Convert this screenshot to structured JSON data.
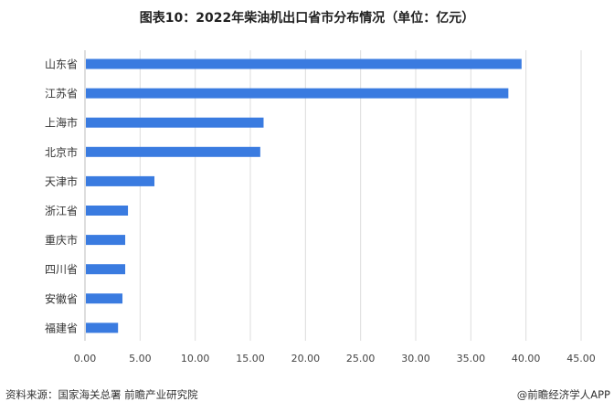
{
  "chart_data": {
    "type": "bar",
    "orientation": "horizontal",
    "title": "图表10：2022年柴油机出口省市分布情况（单位：亿元）",
    "categories": [
      "山东省",
      "江苏省",
      "上海市",
      "北京市",
      "天津市",
      "浙江省",
      "重庆市",
      "四川省",
      "安徽省",
      "福建省"
    ],
    "values": [
      39.6,
      38.4,
      16.2,
      15.9,
      6.3,
      3.9,
      3.65,
      3.65,
      3.4,
      3.0
    ],
    "xlim": [
      0,
      45
    ],
    "xticks": [
      "0.00",
      "5.00",
      "10.00",
      "15.00",
      "20.00",
      "25.00",
      "30.00",
      "35.00",
      "40.00",
      "45.00"
    ],
    "xlabel": "",
    "ylabel": "",
    "grid": true,
    "bar_color": "#3a7be0"
  },
  "footer": {
    "source": "资料来源：国家海关总署 前瞻产业研究院",
    "credit": "@前瞻经济学人APP"
  }
}
